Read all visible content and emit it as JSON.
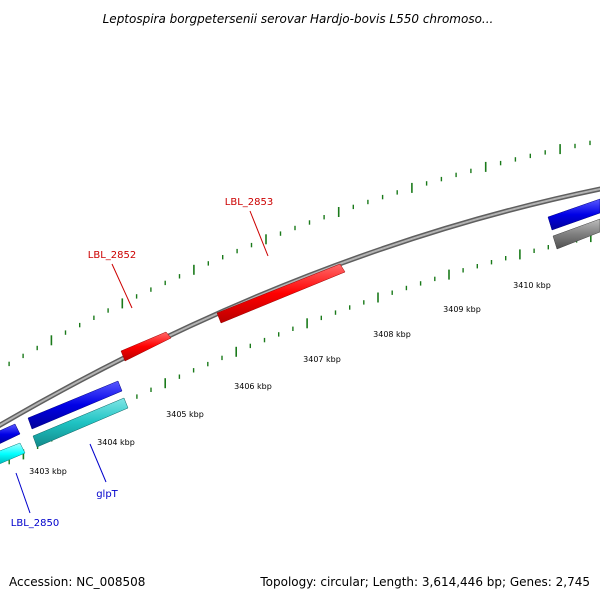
{
  "title": "Leptospira borgpetersenii serovar Hardjo-bovis L550 chromoso...",
  "footer": {
    "accession": "Accession: NC_008508",
    "summary": "Topology: circular; Length: 3,614,446 bp; Genes: 2,745"
  },
  "colors": {
    "backbone": "#8c8c8c",
    "tick": "#1a7a1a",
    "gene_red": "#ff0000",
    "gene_blue": "#0000e6",
    "gene_cyan": "#1fc3c3",
    "gene_cyan_light": "#00ffff",
    "gene_gray": "#808080",
    "label_red": "#cc0000",
    "label_blue": "#0000cc"
  },
  "scale_labels": [
    "3403 kbp",
    "3404 kbp",
    "3405 kbp",
    "3406 kbp",
    "3407 kbp",
    "3408 kbp",
    "3409 kbp",
    "3410 kbp"
  ],
  "gene_labels": [
    "LBL_2853",
    "LBL_2852",
    "glpT",
    "LBL_2850"
  ]
}
